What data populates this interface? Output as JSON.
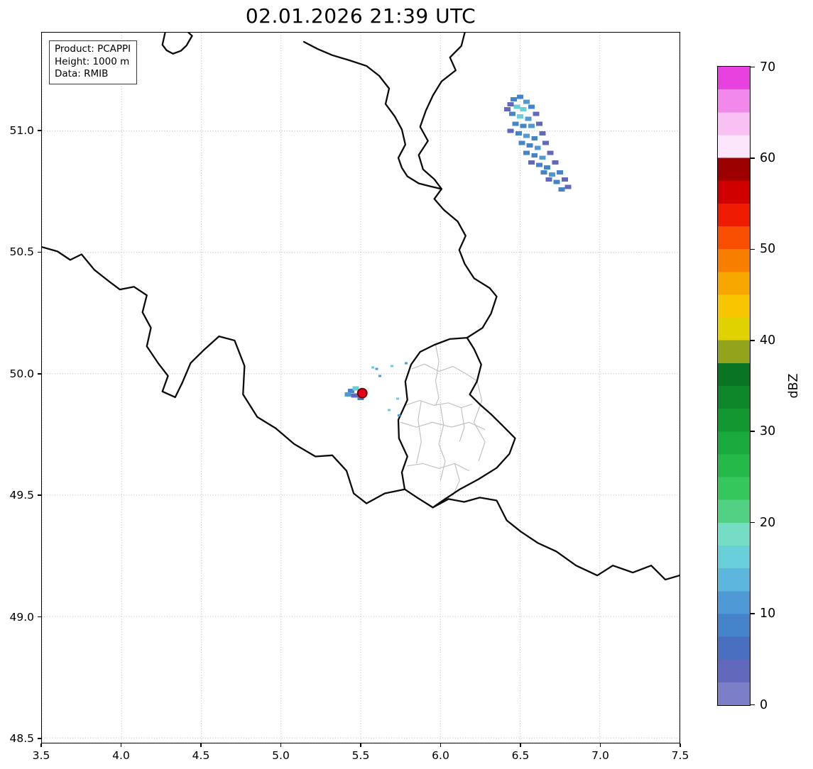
{
  "title": "02.01.2026 21:39 UTC",
  "info_box": {
    "lines": [
      "Product: PCAPPI",
      "Height: 1000 m",
      "Data: RMIB"
    ]
  },
  "chart_data": {
    "type": "radar_reflectivity_map",
    "title": "02.01.2026 21:39 UTC",
    "xlabel": "",
    "ylabel": "",
    "xlim": [
      3.5,
      7.5
    ],
    "ylim": [
      48.48,
      51.405
    ],
    "x_ticks": [
      3.5,
      4,
      4.5,
      5,
      5.5,
      6,
      6.5,
      7,
      7.5
    ],
    "y_ticks": [
      48.5,
      49,
      49.5,
      50,
      50.5,
      51
    ],
    "grid": "dotted",
    "colorbar": {
      "label": "dBZ",
      "min": 0,
      "max": 70,
      "ticks": [
        0,
        10,
        20,
        30,
        40,
        50,
        60,
        70
      ],
      "bands": [
        {
          "v0": 0,
          "v1": 2.5,
          "color": "#7c7fc8"
        },
        {
          "v0": 2.5,
          "v1": 5,
          "color": "#6268bb"
        },
        {
          "v0": 5,
          "v1": 7.5,
          "color": "#4a6fc0"
        },
        {
          "v0": 7.5,
          "v1": 10,
          "color": "#4583cb"
        },
        {
          "v0": 10,
          "v1": 12.5,
          "color": "#4f9ad6"
        },
        {
          "v0": 12.5,
          "v1": 15,
          "color": "#5cb6de"
        },
        {
          "v0": 15,
          "v1": 17.5,
          "color": "#68cfd9"
        },
        {
          "v0": 17.5,
          "v1": 20,
          "color": "#74ddc4"
        },
        {
          "v0": 20,
          "v1": 22.5,
          "color": "#52d184"
        },
        {
          "v0": 22.5,
          "v1": 25,
          "color": "#35c75c"
        },
        {
          "v0": 25,
          "v1": 27.5,
          "color": "#25ba48"
        },
        {
          "v0": 27.5,
          "v1": 30,
          "color": "#1aa93c"
        },
        {
          "v0": 30,
          "v1": 32.5,
          "color": "#129831"
        },
        {
          "v0": 32.5,
          "v1": 35,
          "color": "#0d8629"
        },
        {
          "v0": 35,
          "v1": 37.5,
          "color": "#097421"
        },
        {
          "v0": 37.5,
          "v1": 40,
          "color": "#93a31c"
        },
        {
          "v0": 40,
          "v1": 42.5,
          "color": "#e0d200"
        },
        {
          "v0": 42.5,
          "v1": 45,
          "color": "#f7c600"
        },
        {
          "v0": 45,
          "v1": 47.5,
          "color": "#f8a600"
        },
        {
          "v0": 47.5,
          "v1": 50,
          "color": "#f87e00"
        },
        {
          "v0": 50,
          "v1": 52.5,
          "color": "#f84f00"
        },
        {
          "v0": 52.5,
          "v1": 55,
          "color": "#ee1b00"
        },
        {
          "v0": 55,
          "v1": 57.5,
          "color": "#d10000"
        },
        {
          "v0": 57.5,
          "v1": 60,
          "color": "#9d0000"
        },
        {
          "v0": 60,
          "v1": 62.5,
          "color": "#fce6fb"
        },
        {
          "v0": 62.5,
          "v1": 65,
          "color": "#f9c0f3"
        },
        {
          "v0": 65,
          "v1": 67.5,
          "color": "#f288e9"
        },
        {
          "v0": 67.5,
          "v1": 70,
          "color": "#e941df"
        }
      ]
    },
    "red_marker": {
      "lon": 5.51,
      "lat": 49.92,
      "dbz": 50,
      "fill": "#e2001a",
      "stroke": "#7e0000"
    },
    "echoes": {
      "cells": [
        [
          6.46,
          51.13,
          8
        ],
        [
          6.5,
          51.14,
          8
        ],
        [
          6.54,
          51.12,
          11
        ],
        [
          6.44,
          51.11,
          4
        ],
        [
          6.48,
          51.1,
          16
        ],
        [
          6.52,
          51.09,
          16
        ],
        [
          6.57,
          51.1,
          8
        ],
        [
          6.45,
          51.07,
          8
        ],
        [
          6.5,
          51.06,
          16
        ],
        [
          6.55,
          51.05,
          11
        ],
        [
          6.6,
          51.07,
          4
        ],
        [
          6.42,
          51.09,
          4
        ],
        [
          6.47,
          51.03,
          8
        ],
        [
          6.52,
          51.02,
          8
        ],
        [
          6.57,
          51.02,
          11
        ],
        [
          6.62,
          51.03,
          4
        ],
        [
          6.44,
          51.0,
          4
        ],
        [
          6.49,
          50.99,
          8
        ],
        [
          6.54,
          50.98,
          11
        ],
        [
          6.59,
          50.97,
          8
        ],
        [
          6.64,
          50.99,
          4
        ],
        [
          6.51,
          50.95,
          8
        ],
        [
          6.56,
          50.94,
          8
        ],
        [
          6.61,
          50.93,
          11
        ],
        [
          6.66,
          50.95,
          4
        ],
        [
          6.54,
          50.91,
          8
        ],
        [
          6.59,
          50.9,
          8
        ],
        [
          6.64,
          50.89,
          11
        ],
        [
          6.69,
          50.91,
          4
        ],
        [
          6.57,
          50.87,
          4
        ],
        [
          6.62,
          50.86,
          8
        ],
        [
          6.67,
          50.85,
          8
        ],
        [
          6.72,
          50.87,
          4
        ],
        [
          6.65,
          50.83,
          8
        ],
        [
          6.7,
          50.82,
          11
        ],
        [
          6.75,
          50.83,
          8
        ],
        [
          6.68,
          50.8,
          4
        ],
        [
          6.73,
          50.79,
          8
        ],
        [
          6.78,
          50.8,
          4
        ],
        [
          6.76,
          50.76,
          8
        ],
        [
          6.8,
          50.77,
          4
        ],
        [
          5.44,
          49.93,
          8
        ],
        [
          5.47,
          49.94,
          16
        ],
        [
          5.46,
          49.91,
          4
        ],
        [
          5.5,
          49.9,
          8
        ],
        [
          5.42,
          49.915,
          11
        ]
      ],
      "specks": [
        [
          5.576,
          50.026,
          16
        ],
        [
          5.6,
          50.02,
          11
        ],
        [
          5.696,
          50.032,
          16
        ],
        [
          5.784,
          50.043,
          11
        ],
        [
          5.731,
          49.898,
          16
        ],
        [
          5.678,
          49.851,
          16
        ],
        [
          5.74,
          49.828,
          11
        ],
        [
          5.62,
          49.99,
          11
        ]
      ]
    },
    "map_borders": {
      "countries": [
        [
          [
            4.273,
            51.405
          ],
          [
            4.256,
            51.355
          ],
          [
            4.282,
            51.332
          ],
          [
            4.322,
            51.318
          ],
          [
            4.372,
            51.33
          ],
          [
            4.407,
            51.352
          ],
          [
            4.442,
            51.392
          ],
          [
            4.42,
            51.405
          ]
        ],
        [
          [
            5.144,
            51.367
          ],
          [
            5.229,
            51.338
          ],
          [
            5.322,
            51.312
          ],
          [
            5.429,
            51.291
          ],
          [
            5.536,
            51.268
          ],
          [
            5.616,
            51.227
          ],
          [
            5.678,
            51.175
          ],
          [
            5.656,
            51.111
          ],
          [
            5.713,
            51.061
          ],
          [
            5.758,
            51.006
          ],
          [
            5.78,
            50.944
          ],
          [
            5.736,
            50.889
          ],
          [
            5.758,
            50.848
          ],
          [
            5.793,
            50.813
          ],
          [
            5.864,
            50.784
          ],
          [
            5.936,
            50.772
          ],
          [
            6.007,
            50.761
          ]
        ],
        [
          [
            6.153,
            51.405
          ],
          [
            6.131,
            51.35
          ],
          [
            6.06,
            51.303
          ],
          [
            6.096,
            51.25
          ],
          [
            6.007,
            51.204
          ],
          [
            5.953,
            51.146
          ],
          [
            5.909,
            51.084
          ],
          [
            5.873,
            51.017
          ],
          [
            5.922,
            50.959
          ],
          [
            5.864,
            50.901
          ],
          [
            5.891,
            50.842
          ],
          [
            5.962,
            50.801
          ],
          [
            6.007,
            50.761
          ]
        ],
        [
          [
            6.007,
            50.761
          ],
          [
            5.962,
            50.72
          ],
          [
            6.02,
            50.676
          ],
          [
            6.109,
            50.627
          ],
          [
            6.158,
            50.568
          ],
          [
            6.118,
            50.51
          ],
          [
            6.153,
            50.452
          ],
          [
            6.211,
            50.393
          ],
          [
            6.309,
            50.353
          ],
          [
            6.353,
            50.318
          ],
          [
            6.318,
            50.248
          ],
          [
            6.264,
            50.189
          ],
          [
            6.167,
            50.148
          ]
        ],
        [
          [
            6.167,
            50.148
          ],
          [
            6.211,
            50.102
          ],
          [
            6.256,
            50.038
          ],
          [
            6.229,
            49.968
          ],
          [
            6.184,
            49.915
          ],
          [
            6.247,
            49.874
          ],
          [
            6.318,
            49.833
          ],
          [
            6.389,
            49.787
          ],
          [
            6.469,
            49.734
          ],
          [
            6.433,
            49.67
          ],
          [
            6.353,
            49.612
          ],
          [
            6.238,
            49.565
          ],
          [
            6.122,
            49.524
          ],
          [
            6.016,
            49.478
          ],
          [
            5.953,
            49.449
          ],
          [
            5.856,
            49.489
          ],
          [
            5.776,
            49.524
          ],
          [
            5.758,
            49.594
          ],
          [
            5.793,
            49.659
          ],
          [
            5.74,
            49.734
          ],
          [
            5.736,
            49.81
          ],
          [
            5.793,
            49.892
          ],
          [
            5.78,
            49.968
          ],
          [
            5.816,
            50.038
          ],
          [
            5.873,
            50.09
          ],
          [
            5.962,
            50.119
          ],
          [
            6.06,
            50.143
          ],
          [
            6.167,
            50.148
          ]
        ],
        [
          [
            3.5,
            50.522
          ],
          [
            3.598,
            50.504
          ],
          [
            3.678,
            50.469
          ],
          [
            3.749,
            50.492
          ],
          [
            3.829,
            50.428
          ],
          [
            3.918,
            50.382
          ],
          [
            3.989,
            50.347
          ],
          [
            4.078,
            50.358
          ],
          [
            4.158,
            50.323
          ],
          [
            4.131,
            50.253
          ],
          [
            4.184,
            50.189
          ],
          [
            4.158,
            50.113
          ],
          [
            4.229,
            50.044
          ],
          [
            4.291,
            49.991
          ],
          [
            4.256,
            49.927
          ],
          [
            4.336,
            49.903
          ],
          [
            4.38,
            49.962
          ],
          [
            4.433,
            50.044
          ],
          [
            4.513,
            50.096
          ],
          [
            4.611,
            50.154
          ],
          [
            4.709,
            50.137
          ],
          [
            4.771,
            50.032
          ],
          [
            4.762,
            49.915
          ],
          [
            4.851,
            49.822
          ],
          [
            4.967,
            49.775
          ],
          [
            5.082,
            49.711
          ],
          [
            5.216,
            49.659
          ],
          [
            5.322,
            49.664
          ],
          [
            5.411,
            49.6
          ],
          [
            5.456,
            49.507
          ],
          [
            5.536,
            49.466
          ],
          [
            5.651,
            49.507
          ],
          [
            5.776,
            49.524
          ]
        ],
        [
          [
            5.953,
            49.449
          ],
          [
            6.051,
            49.484
          ],
          [
            6.149,
            49.472
          ],
          [
            6.247,
            49.49
          ],
          [
            6.353,
            49.478
          ],
          [
            6.416,
            49.396
          ],
          [
            6.504,
            49.35
          ],
          [
            6.611,
            49.303
          ],
          [
            6.727,
            49.268
          ],
          [
            6.851,
            49.21
          ],
          [
            6.984,
            49.169
          ],
          [
            7.082,
            49.21
          ],
          [
            7.207,
            49.181
          ],
          [
            7.322,
            49.21
          ],
          [
            7.411,
            49.152
          ],
          [
            7.5,
            49.169
          ]
        ]
      ],
      "regions": [
        [
          [
            5.82,
            50.02
          ],
          [
            5.9,
            50.04
          ],
          [
            5.99,
            50.01
          ],
          [
            6.08,
            50.03
          ],
          [
            6.16,
            50.0
          ],
          [
            6.23,
            49.97
          ]
        ],
        [
          [
            5.78,
            49.87
          ],
          [
            5.87,
            49.89
          ],
          [
            5.96,
            49.87
          ],
          [
            6.05,
            49.88
          ],
          [
            6.13,
            49.86
          ],
          [
            6.2,
            49.875
          ]
        ],
        [
          [
            5.97,
            50.12
          ],
          [
            5.99,
            50.05
          ],
          [
            5.97,
            49.97
          ],
          [
            5.99,
            49.9
          ],
          [
            5.97,
            49.87
          ]
        ],
        [
          [
            5.75,
            49.8
          ],
          [
            5.85,
            49.78
          ],
          [
            5.95,
            49.8
          ],
          [
            6.07,
            49.78
          ],
          [
            6.18,
            49.8
          ],
          [
            6.28,
            49.77
          ]
        ],
        [
          [
            6.0,
            49.87
          ],
          [
            6.02,
            49.79
          ],
          [
            5.99,
            49.71
          ],
          [
            6.03,
            49.64
          ],
          [
            6.0,
            49.56
          ]
        ],
        [
          [
            5.79,
            49.62
          ],
          [
            5.89,
            49.63
          ],
          [
            5.99,
            49.61
          ],
          [
            6.09,
            49.63
          ],
          [
            6.18,
            49.6
          ]
        ],
        [
          [
            6.23,
            49.97
          ],
          [
            6.26,
            49.89
          ],
          [
            6.21,
            49.8
          ],
          [
            6.28,
            49.72
          ],
          [
            6.24,
            49.64
          ]
        ],
        [
          [
            5.88,
            49.89
          ],
          [
            5.86,
            49.81
          ],
          [
            5.88,
            49.72
          ],
          [
            5.85,
            49.63
          ]
        ],
        [
          [
            6.09,
            49.63
          ],
          [
            6.12,
            49.56
          ],
          [
            6.08,
            49.5
          ]
        ],
        [
          [
            6.13,
            49.86
          ],
          [
            6.15,
            49.78
          ],
          [
            6.12,
            49.72
          ]
        ]
      ]
    }
  }
}
